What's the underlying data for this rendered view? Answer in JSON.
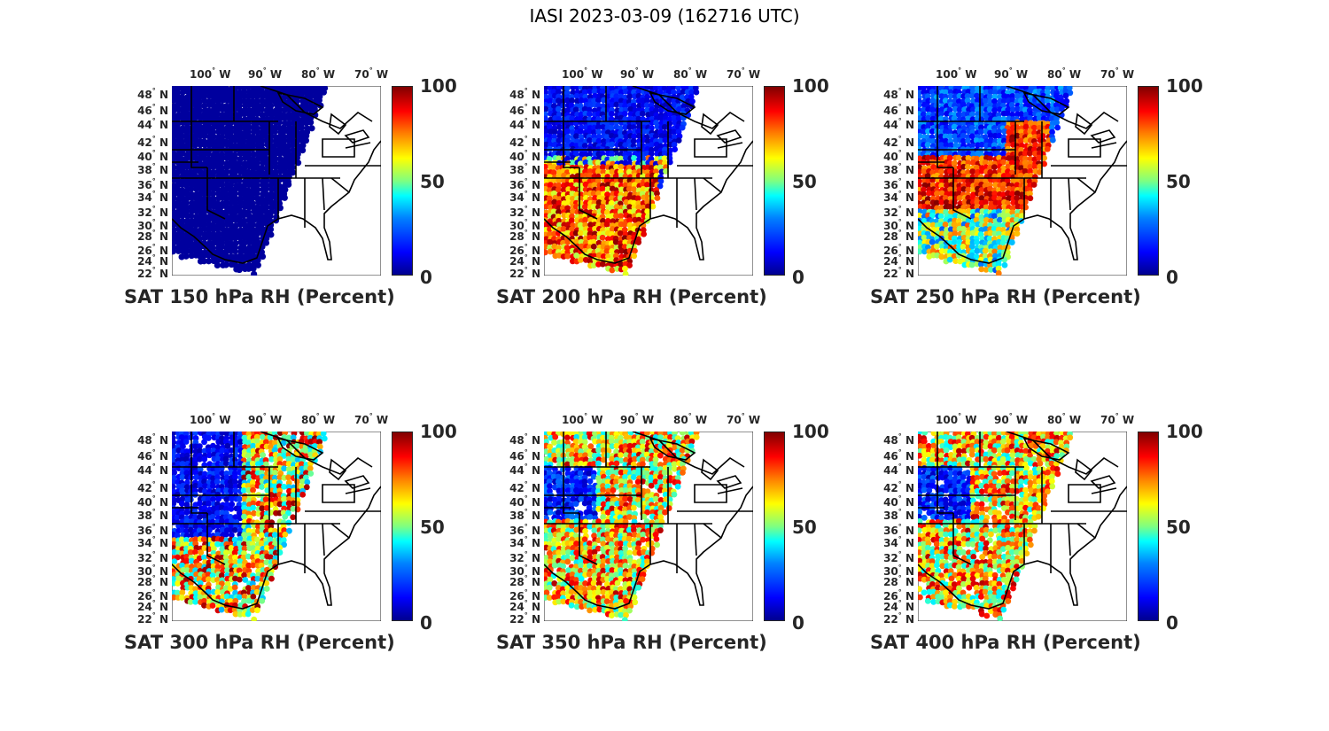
{
  "figure_title": "IASI 2023-03-09 (162716 UTC)",
  "colorbar": {
    "max": "100",
    "mid": "50",
    "min": "0"
  },
  "lon_labels": [
    "100",
    "90",
    "80",
    "70"
  ],
  "lon_suffix": "W",
  "lat_labels": [
    "48",
    "46",
    "44",
    "42",
    "40",
    "38",
    "36",
    "34",
    "32",
    "30",
    "28",
    "26",
    "24",
    "22"
  ],
  "lat_suffix": "N",
  "degree_symbol": "°",
  "panels": [
    {
      "label": "SAT 150 hPa RH (Percent)",
      "pressure_hPa": 150,
      "regime": "dry"
    },
    {
      "label": "SAT 200 hPa RH (Percent)",
      "pressure_hPa": 200,
      "regime": "moist-south"
    },
    {
      "label": "SAT 250 hPa RH (Percent)",
      "pressure_hPa": 250,
      "regime": "moist-band"
    },
    {
      "label": "SAT 300 hPa RH (Percent)",
      "pressure_hPa": 300,
      "regime": "mixed"
    },
    {
      "label": "SAT 350 hPa RH (Percent)",
      "pressure_hPa": 350,
      "regime": "mixed-moist"
    },
    {
      "label": "SAT 400 hPa RH (Percent)",
      "pressure_hPa": 400,
      "regime": "mixed-moist"
    }
  ],
  "colors": {
    "colormap": "jet",
    "dry": "#00008f",
    "moist": "#ff0000",
    "coastline": "#000000"
  }
}
